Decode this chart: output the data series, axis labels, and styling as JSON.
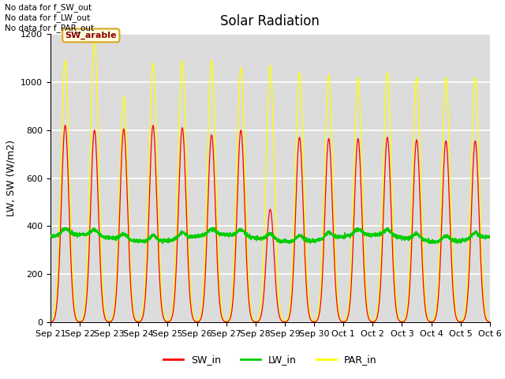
{
  "title": "Solar Radiation",
  "ylabel": "LW, SW (W/m2)",
  "ylim": [
    0,
    1200
  ],
  "yticks": [
    0,
    200,
    400,
    600,
    800,
    1000,
    1200
  ],
  "bg_color": "#dcdcdc",
  "grid_color": "white",
  "annotations": [
    "No data for f_SW_out",
    "No data for f_LW_out",
    "No data for f_PAR_out"
  ],
  "legend_label": "SW_arable",
  "sw_color": "#ff0000",
  "lw_color": "#00cc00",
  "par_color": "#ffff00",
  "n_days": 15,
  "sw_peaks": [
    820,
    800,
    805,
    820,
    810,
    780,
    800,
    470,
    770,
    765,
    765,
    770,
    760,
    755,
    755
  ],
  "par_peaks": [
    1090,
    1200,
    940,
    1080,
    1090,
    1090,
    1060,
    1070,
    1040,
    1030,
    1020,
    1040,
    1020,
    1020,
    1020
  ],
  "lw_base": 350,
  "figwidth": 6.4,
  "figheight": 4.8,
  "dpi": 100
}
